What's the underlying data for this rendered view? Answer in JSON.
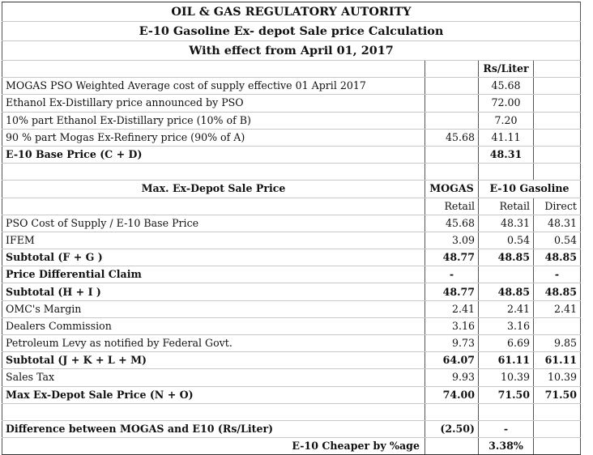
{
  "titles": [
    "OIL & GAS REGULATORY AUTORITY",
    "E-10 Gasoline Ex- depot Sale price Calculation",
    "With effect from April 01, 2017"
  ],
  "unit_header": "Rs/Liter",
  "section1": [
    {
      "label": "MOGAS PSO Weighted Average cost of supply effective 01 April 2017",
      "mogas": "",
      "value": "45.68",
      "bold": false
    },
    {
      "label": "Ethanol Ex-Distillary price announced by PSO",
      "mogas": "",
      "value": "72.00",
      "bold": false
    },
    {
      "label": "10% part Ethanol Ex-Distillary price (10% of B)",
      "mogas": "",
      "value": "7.20",
      "bold": false
    },
    {
      "label": "90 % part Mogas Ex-Refinery price (90% of A)",
      "mogas": "45.68",
      "value": "41.11",
      "bold": false
    },
    {
      "label": "E-10 Base Price (C + D)",
      "mogas": "",
      "value": "48.31",
      "bold": true
    }
  ],
  "header": {
    "label": "Max. Ex-Depot Sale Price",
    "mogas": "MOGAS",
    "e10": "E-10 Gasoline",
    "sub_mogas": "Retail",
    "sub_e10_retail": "Retail",
    "sub_e10_direct": "Direct"
  },
  "section2": [
    {
      "label": "PSO Cost of Supply / E-10 Base Price",
      "mogas": "45.68",
      "retail": "48.31",
      "direct": "48.31",
      "bold": false
    },
    {
      "label": "IFEM",
      "mogas": "3.09",
      "retail": "0.54",
      "direct": "0.54",
      "bold": false
    },
    {
      "label": "Subtotal (F + G )",
      "mogas": "48.77",
      "retail": "48.85",
      "direct": "48.85",
      "bold": true
    },
    {
      "label": "Price Differential Claim",
      "mogas": "-",
      "retail": "",
      "direct": "-",
      "bold": true
    },
    {
      "label": "Subtotal (H + I )",
      "mogas": "48.77",
      "retail": "48.85",
      "direct": "48.85",
      "bold": true
    },
    {
      "label": "OMC's Margin",
      "mogas": "2.41",
      "retail": "2.41",
      "direct": "2.41",
      "bold": false
    },
    {
      "label": "Dealers Commission",
      "mogas": "3.16",
      "retail": "3.16",
      "direct": "",
      "bold": false
    },
    {
      "label": "Petroleum Levy as notified by Federal Govt.",
      "mogas": "9.73",
      "retail": "6.69",
      "direct": "9.85",
      "bold": false
    },
    {
      "label": "Subtotal (J + K + L + M)",
      "mogas": "64.07",
      "retail": "61.11",
      "direct": "61.11",
      "bold": true
    },
    {
      "label": "Sales Tax",
      "mogas": "9.93",
      "retail": "10.39",
      "direct": "10.39",
      "bold": false
    },
    {
      "label": "Max Ex-Depot Sale Price (N + O)",
      "mogas": "74.00",
      "retail": "71.50",
      "direct": "71.50",
      "bold": true
    }
  ],
  "difference": {
    "label": "Difference between MOGAS and E10 (Rs/Liter)",
    "mogas": "(2.50)",
    "retail": "-"
  },
  "cheaper": {
    "label": "E-10 Cheaper by %age",
    "retail": "3.38%"
  }
}
